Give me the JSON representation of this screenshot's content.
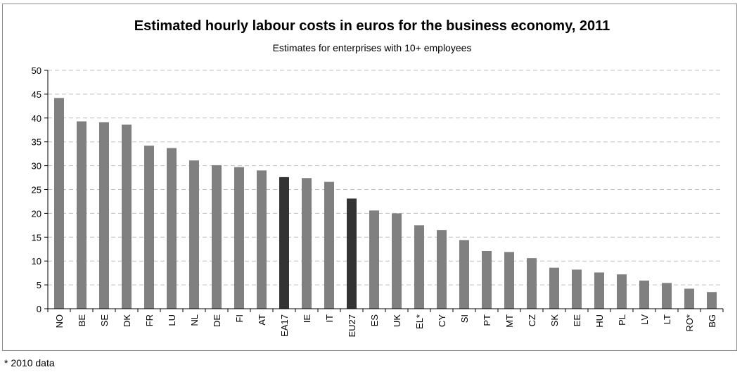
{
  "chart_data": {
    "type": "bar",
    "title": "Estimated hourly labour costs in euros for the business economy, 2011",
    "subtitle": "Estimates for enterprises with 10+ employees",
    "footnote": "* 2010 data",
    "categories": [
      "NO",
      "BE",
      "SE",
      "DK",
      "FR",
      "LU",
      "NL",
      "DE",
      "FI",
      "AT",
      "EA17",
      "IE",
      "IT",
      "EU27",
      "ES",
      "UK",
      "EL*",
      "CY",
      "SI",
      "PT",
      "MT",
      "CZ",
      "SK",
      "EE",
      "HU",
      "PL",
      "LV",
      "LT",
      "RO*",
      "BG"
    ],
    "values": [
      44.2,
      39.3,
      39.1,
      38.6,
      34.2,
      33.7,
      31.1,
      30.1,
      29.7,
      29.0,
      27.6,
      27.4,
      26.6,
      23.1,
      20.6,
      20.0,
      17.5,
      16.5,
      14.4,
      12.1,
      11.9,
      10.6,
      8.6,
      8.2,
      7.6,
      7.2,
      5.9,
      5.4,
      4.2,
      3.5
    ],
    "highlight": [
      "EA17",
      "EU27"
    ],
    "ylim": [
      0,
      50
    ],
    "yticks": [
      0,
      5,
      10,
      15,
      20,
      25,
      30,
      35,
      40,
      45,
      50
    ],
    "grid": true,
    "colors": {
      "bar": "#808080",
      "highlight": "#333333",
      "grid": "#c0c0c0",
      "axis": "#000000"
    }
  }
}
